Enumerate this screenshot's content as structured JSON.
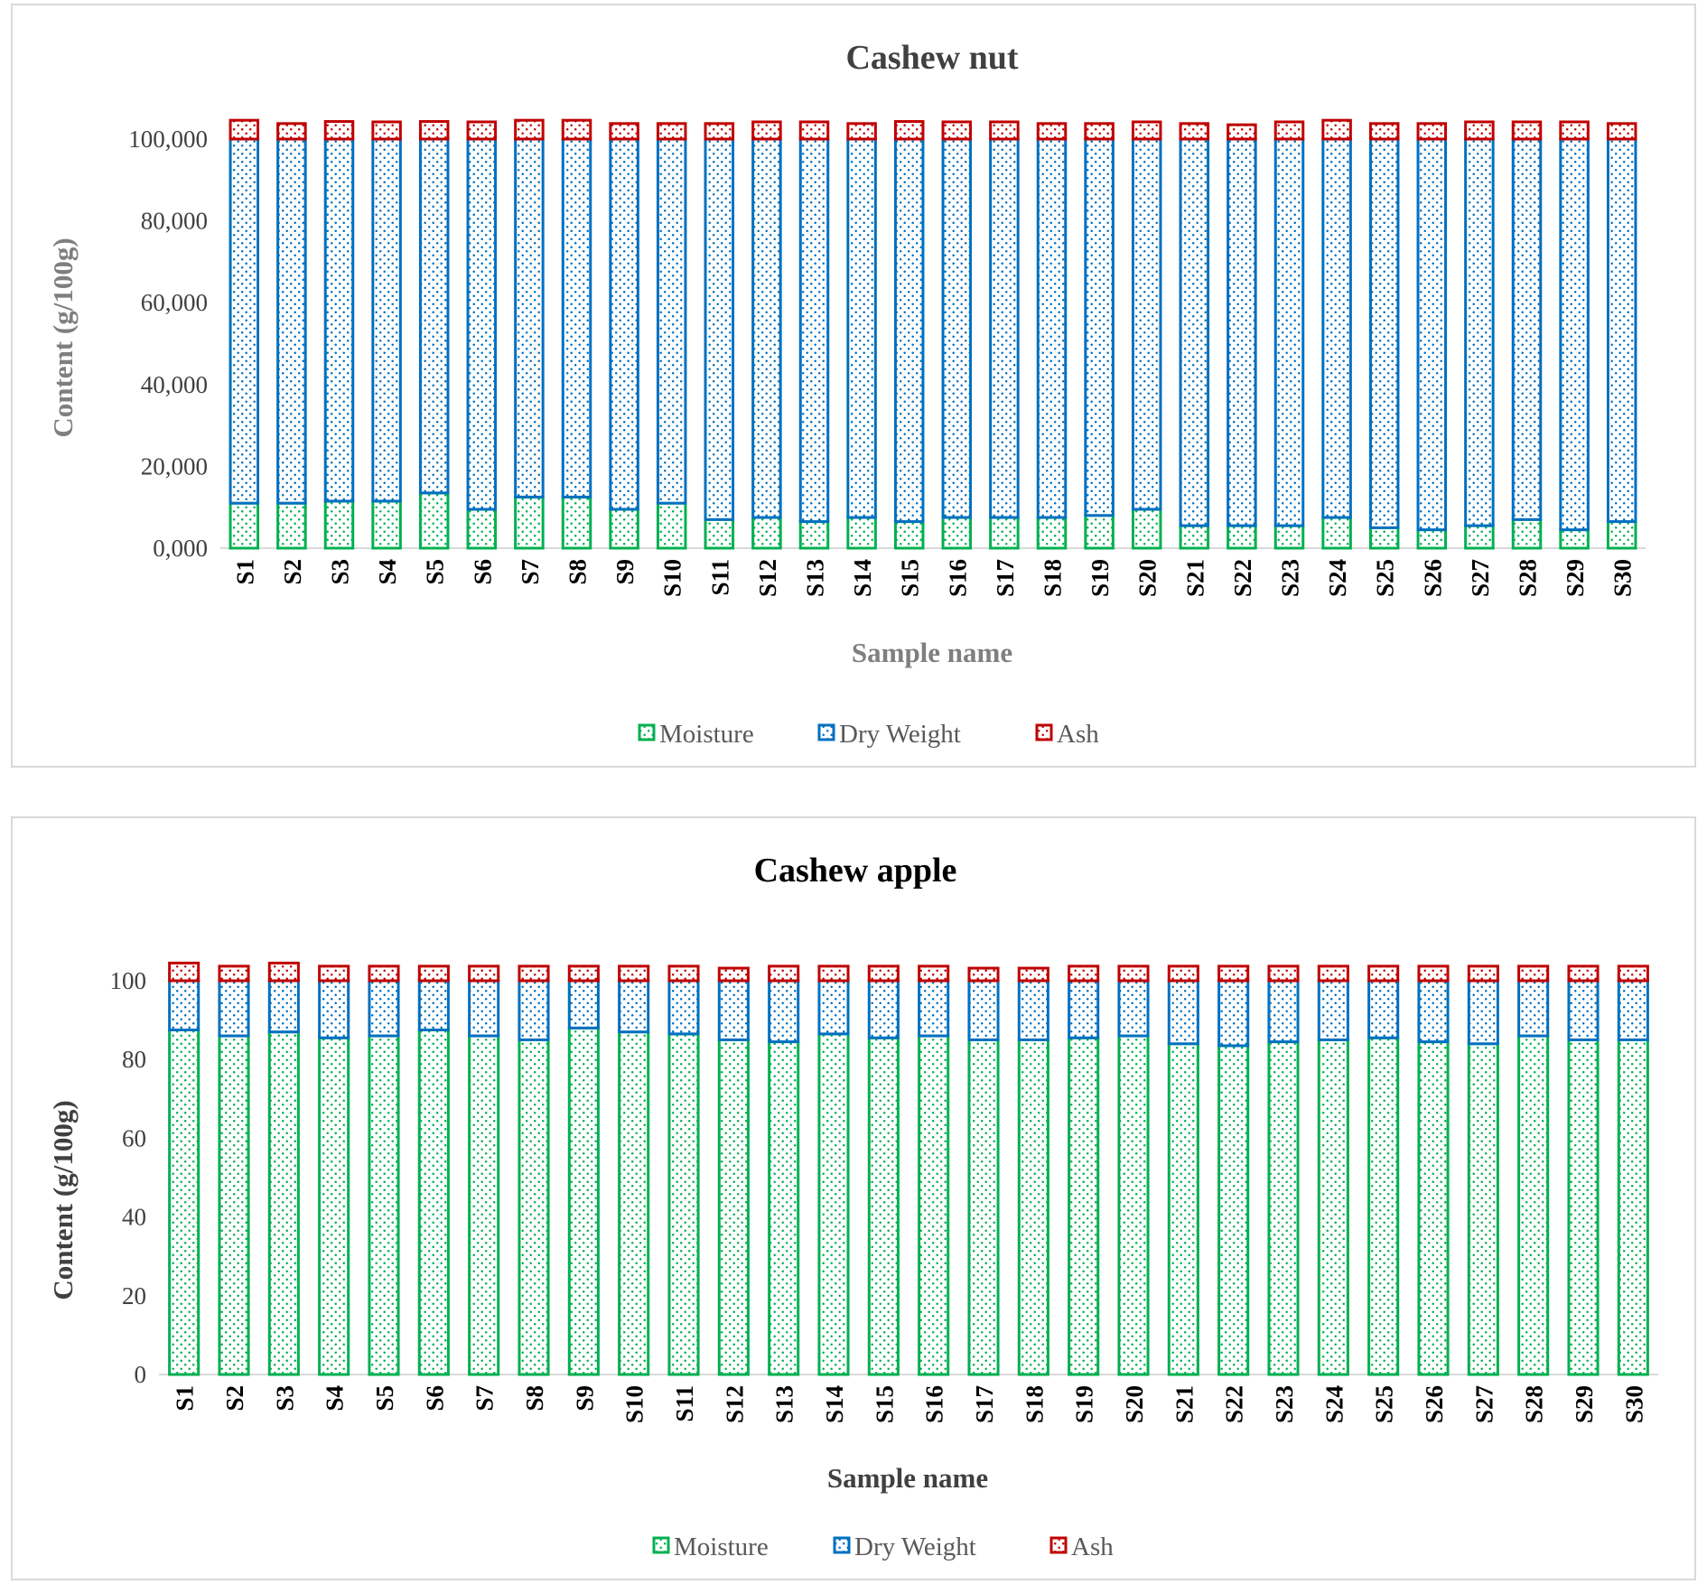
{
  "chart_data": [
    {
      "type": "bar",
      "stacked": true,
      "title": "Cashew nut",
      "xlabel": "Sample name",
      "ylabel": "Content (g/100g)",
      "ylim": [
        0,
        100
      ],
      "yticks": [
        "0,000",
        "20,000",
        "40,000",
        "60,000",
        "80,000",
        "100,000"
      ],
      "legend_position": "bottom",
      "categories": [
        "S1",
        "S2",
        "S3",
        "S4",
        "S5",
        "S6",
        "S7",
        "S8",
        "S9",
        "S10",
        "S11",
        "S12",
        "S13",
        "S14",
        "S15",
        "S16",
        "S17",
        "S18",
        "S19",
        "S20",
        "S21",
        "S22",
        "S23",
        "S24",
        "S25",
        "S26",
        "S27",
        "S28",
        "S29",
        "S30"
      ],
      "series": [
        {
          "name": "Moisture",
          "color": "#00b050",
          "values": [
            11.0,
            11.0,
            11.5,
            11.5,
            13.5,
            9.5,
            12.5,
            12.5,
            9.5,
            11.0,
            7.0,
            7.5,
            6.5,
            7.5,
            6.5,
            7.5,
            7.5,
            7.5,
            8.0,
            9.5,
            5.5,
            5.5,
            5.5,
            7.5,
            5.0,
            4.5,
            5.5,
            7.0,
            4.5,
            6.5
          ]
        },
        {
          "name": "Dry  Weight",
          "color": "#0070c0",
          "values": [
            89.0,
            89.0,
            88.5,
            88.5,
            86.5,
            90.5,
            87.5,
            87.5,
            90.5,
            89.0,
            93.0,
            92.5,
            93.5,
            92.5,
            93.5,
            92.5,
            92.5,
            92.5,
            92.0,
            90.5,
            94.5,
            94.5,
            94.5,
            92.5,
            95.0,
            95.5,
            94.5,
            93.0,
            95.5,
            93.5
          ]
        },
        {
          "name": "Ash",
          "color": "#c00000",
          "values": [
            4.6,
            3.8,
            4.3,
            4.2,
            4.3,
            4.2,
            4.6,
            4.6,
            3.8,
            3.8,
            3.8,
            4.2,
            4.2,
            3.8,
            4.3,
            4.2,
            4.2,
            3.8,
            3.8,
            4.2,
            3.8,
            3.5,
            4.2,
            4.6,
            3.8,
            3.8,
            4.2,
            4.2,
            4.2,
            3.8
          ]
        }
      ]
    },
    {
      "type": "bar",
      "stacked": true,
      "title": "Cashew apple",
      "xlabel": "Sample name",
      "ylabel": "Content (g/100g)",
      "ylim": [
        0,
        100
      ],
      "yticks": [
        "0",
        "20",
        "40",
        "60",
        "80",
        "100"
      ],
      "legend_position": "bottom",
      "categories": [
        "S1",
        "S2",
        "S3",
        "S4",
        "S5",
        "S6",
        "S7",
        "S8",
        "S9",
        "S10",
        "S11",
        "S12",
        "S13",
        "S14",
        "S15",
        "S16",
        "S17",
        "S18",
        "S19",
        "S20",
        "S21",
        "S22",
        "S23",
        "S24",
        "S25",
        "S26",
        "S27",
        "S28",
        "S29",
        "S30"
      ],
      "series": [
        {
          "name": "Moisture",
          "color": "#00b050",
          "values": [
            87.5,
            86.0,
            87.0,
            85.5,
            86.0,
            87.5,
            86.0,
            85.0,
            88.0,
            87.0,
            86.5,
            85.0,
            84.5,
            86.5,
            85.5,
            86.0,
            85.0,
            85.0,
            85.5,
            86.0,
            84.0,
            83.5,
            84.5,
            85.0,
            85.5,
            84.5,
            84.0,
            86.0,
            85.0,
            85.0
          ]
        },
        {
          "name": "Dry  Weight",
          "color": "#0070c0",
          "values": [
            12.5,
            14.0,
            13.0,
            14.5,
            14.0,
            12.5,
            14.0,
            15.0,
            12.0,
            13.0,
            13.5,
            15.0,
            15.5,
            13.5,
            14.5,
            14.0,
            15.0,
            15.0,
            14.5,
            14.0,
            16.0,
            16.5,
            15.5,
            15.0,
            14.5,
            15.5,
            16.0,
            14.0,
            15.0,
            15.0
          ]
        },
        {
          "name": "Ash",
          "color": "#c00000",
          "values": [
            4.5,
            3.7,
            4.5,
            3.7,
            3.7,
            3.7,
            3.7,
            3.7,
            3.7,
            3.7,
            3.7,
            3.2,
            3.7,
            3.7,
            3.7,
            3.7,
            3.2,
            3.2,
            3.7,
            3.7,
            3.7,
            3.7,
            3.7,
            3.7,
            3.7,
            3.7,
            3.7,
            3.7,
            3.7,
            3.7
          ]
        }
      ]
    }
  ]
}
